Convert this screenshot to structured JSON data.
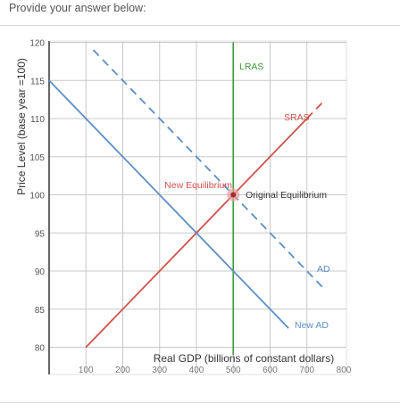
{
  "prompt": {
    "text": "Provide your answer below:"
  },
  "chart_data": {
    "type": "line",
    "title": "",
    "xlabel": "Real GDP (billions of constant dollars)",
    "ylabel": "Price Level (base year =100)",
    "xlim": [
      0,
      800
    ],
    "ylim": [
      79,
      120
    ],
    "x_ticks": [
      100,
      200,
      300,
      400,
      500,
      600,
      700,
      800
    ],
    "y_ticks": [
      80,
      85,
      90,
      95,
      100,
      105,
      110,
      115,
      120
    ],
    "grid": true,
    "series": [
      {
        "name": "LRAS",
        "color": "#3a9a3a",
        "style": "solid",
        "x": [
          500,
          500
        ],
        "y": [
          79,
          120
        ]
      },
      {
        "name": "SRAS",
        "color": "#d0504a",
        "style": "solid",
        "x": [
          100,
          700
        ],
        "y": [
          80,
          110
        ]
      },
      {
        "name": "SRAS",
        "color": "#d0504a",
        "style": "dashed",
        "x": [
          700,
          750
        ],
        "y": [
          110,
          112.5
        ]
      },
      {
        "name": "AD",
        "color": "#5b8ec4",
        "style": "dashed",
        "x": [
          120,
          750
        ],
        "y": [
          119,
          87.5
        ]
      },
      {
        "name": "New AD",
        "color": "#5b8ec4",
        "style": "solid",
        "x": [
          0,
          650
        ],
        "y": [
          115,
          82.5
        ]
      }
    ],
    "labels": [
      {
        "text": "LRAS",
        "color": "#3a9a3a"
      },
      {
        "text": "SRAS",
        "color": "#d0504a"
      },
      {
        "text": "AD",
        "color": "#5b8ec4"
      },
      {
        "text": "New AD",
        "color": "#5b8ec4"
      },
      {
        "text": "New Equilibrium",
        "color": "#d0504a"
      },
      {
        "text": "Original Equilibrium",
        "color": "#333333"
      }
    ],
    "points": [
      {
        "name": "Original Equilibrium",
        "x": 500,
        "y": 100
      }
    ]
  }
}
